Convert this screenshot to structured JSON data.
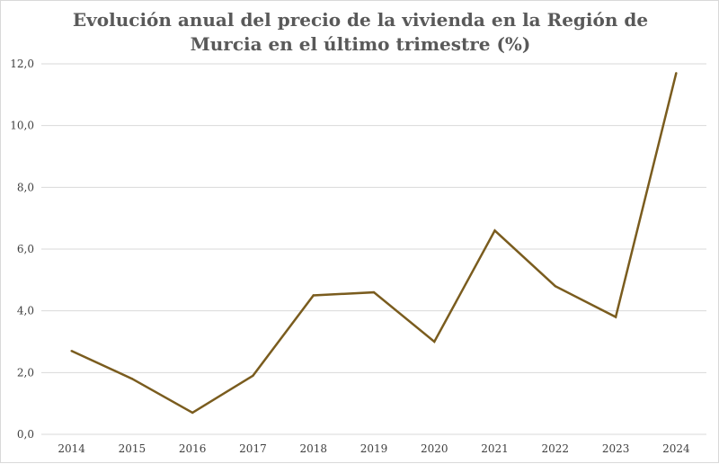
{
  "chart_data": {
    "type": "line",
    "title_lines": [
      "Evolución anual del precio de la vivienda en la Región de",
      "Murcia en el último trimestre (%)"
    ],
    "categories": [
      "2014",
      "2015",
      "2016",
      "2017",
      "2018",
      "2019",
      "2020",
      "2021",
      "2022",
      "2023",
      "2024"
    ],
    "series": [
      {
        "values": [
          2.7,
          1.8,
          0.7,
          1.9,
          4.5,
          4.6,
          3.0,
          6.6,
          4.8,
          3.8,
          11.7
        ]
      }
    ],
    "ylim": [
      0,
      12
    ],
    "yticks": [
      "0,0",
      "2,0",
      "4,0",
      "6,0",
      "8,0",
      "10,0",
      "12,0"
    ],
    "grid": true,
    "legend": "none",
    "colors": {
      "line": "#7a5c1e",
      "grid": "#d9d9d9",
      "axis": "#d9d9d9"
    }
  }
}
